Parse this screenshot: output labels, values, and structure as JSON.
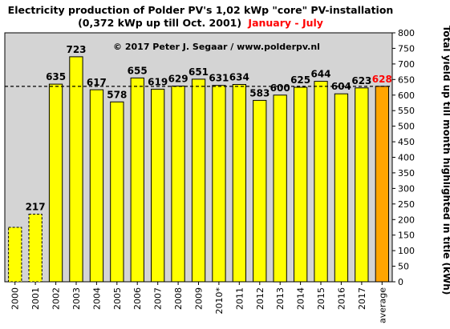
{
  "chart_data": {
    "type": "bar",
    "title_line1": "Electricity production  of Polder PV's 1,02 kWp \"core\" PV-installation",
    "title_line2": "(0,372 kWp up till Oct. 2001)",
    "title_period": "January - July",
    "copyright": "© 2017 Peter J. Segaar / www.polderpv.nl",
    "ylabel": "Total yield up till month highlighted in title (kWh)",
    "ylim": [
      0,
      800
    ],
    "ytick_step": 50,
    "yticks": [
      "0",
      "50",
      "100",
      "150",
      "200",
      "250",
      "300",
      "350",
      "400",
      "450",
      "500",
      "550",
      "600",
      "650",
      "700",
      "750",
      "800"
    ],
    "grid": false,
    "reference_line": {
      "value": 628,
      "style": "dashed"
    },
    "categories": [
      "2000",
      "2001",
      "2002",
      "2003",
      "2004",
      "2005",
      "2006",
      "2007",
      "2008",
      "2009",
      "2010*",
      "2011",
      "2012",
      "2013",
      "2014",
      "2015",
      "2016",
      "2017",
      "average"
    ],
    "values": [
      175,
      217,
      635,
      723,
      617,
      578,
      655,
      619,
      629,
      651,
      631,
      634,
      583,
      600,
      625,
      644,
      604,
      623,
      628
    ],
    "data_labels": [
      "",
      "217",
      "635",
      "723",
      "617",
      "578",
      "655",
      "619",
      "629",
      "651",
      "631",
      "634",
      "583",
      "600",
      "625",
      "644",
      "604",
      "623",
      "628"
    ],
    "bar_styles": [
      "dashed",
      "dashed",
      "solid",
      "solid",
      "solid",
      "solid",
      "solid",
      "solid",
      "solid",
      "solid",
      "solid",
      "solid",
      "solid",
      "solid",
      "solid",
      "solid",
      "solid",
      "solid",
      "highlight"
    ],
    "colors": {
      "bar": "#ffff00",
      "bar_highlight": "#ffa500",
      "plot_background": "#d4d4d4",
      "title": "#000000",
      "period": "#ff0000",
      "highlight_label": "#ff0000"
    }
  }
}
